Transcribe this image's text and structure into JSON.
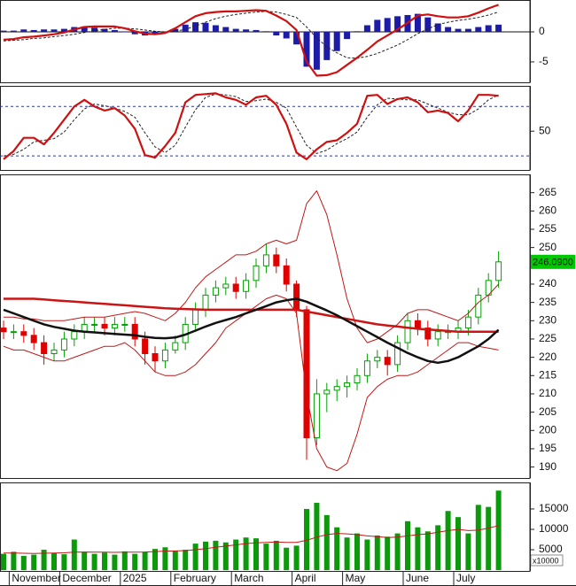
{
  "chart_data": [
    {
      "type": "line",
      "ylim": [
        -8.4,
        5.3
      ],
      "yticks": [
        0,
        -5
      ],
      "zero_line": true,
      "series": [
        {
          "style": "bar",
          "color": "#1c1ca8",
          "values": [
            0.2,
            0.2,
            0.4,
            0.3,
            0.4,
            0.4,
            0.5,
            0.8,
            0.9,
            0.7,
            0.5,
            0.3,
            0,
            -0.4,
            -0.6,
            -0.5,
            -0.2,
            0.5,
            1.2,
            1.6,
            1.5,
            1.1,
            0.8,
            0.5,
            0.4,
            0.3,
            0.1,
            -0.6,
            -1.1,
            -2.1,
            -5.8,
            -6.3,
            -4.7,
            -3.2,
            -1.2,
            0.1,
            1.1,
            2,
            2.3,
            2.6,
            2.8,
            3,
            2.4,
            1.4,
            0.8,
            0.5,
            0.5,
            0.8,
            1.1,
            1.2
          ]
        },
        {
          "style": "dashed",
          "color": "#222222",
          "values": [
            -1.5,
            -1.4,
            -1.3,
            -1.1,
            -1,
            -0.8,
            -0.6,
            -0.4,
            -0.1,
            0.2,
            0.4,
            0.6,
            0.6,
            0.5,
            0.3,
            0.1,
            0,
            0.1,
            0.4,
            1,
            1.6,
            2.2,
            2.6,
            2.9,
            3.1,
            3.3,
            3.4,
            3.3,
            2.9,
            2.4,
            0.8,
            -1,
            -2.5,
            -3.5,
            -4.3,
            -4.4,
            -4.1,
            -3.6,
            -2.9,
            -2.2,
            -1.3,
            -0.3,
            0.5,
            1.2,
            1.6,
            1.9,
            2.1,
            2.4,
            2.8,
            3.3
          ]
        },
        {
          "style": "solid",
          "color": "#d01010",
          "values": [
            -1.3,
            -1.2,
            -0.9,
            -0.8,
            -0.6,
            -0.4,
            -0.1,
            0.4,
            0.8,
            0.9,
            0.9,
            0.9,
            0.6,
            0.1,
            -0.3,
            -0.4,
            -0.2,
            0.6,
            1.6,
            2.6,
            3.1,
            3.3,
            3.4,
            3.4,
            3.5,
            3.6,
            3.5,
            2.7,
            1.8,
            0.3,
            -5,
            -7.3,
            -7.2,
            -6.7,
            -5.5,
            -4.3,
            -3,
            -1.6,
            -0.6,
            0.4,
            1.5,
            2.7,
            2.9,
            2.6,
            2.4,
            2.4,
            2.6,
            3.2,
            3.9,
            4.5
          ]
        }
      ]
    },
    {
      "type": "line",
      "ylim": [
        3,
        105
      ],
      "yticks": [
        50
      ],
      "hlines": [
        80,
        20
      ],
      "series": [
        {
          "style": "dashed",
          "color": "#222222",
          "values": [
            20,
            22,
            28,
            37,
            39,
            41,
            49,
            64,
            77,
            83,
            81,
            78,
            74,
            67,
            48,
            31,
            24,
            33,
            55,
            76,
            91,
            95,
            94,
            92,
            86,
            87,
            89,
            85,
            78,
            55,
            33,
            23,
            27,
            35,
            41,
            49,
            67,
            82,
            90,
            89,
            88,
            88,
            83,
            78,
            73,
            70,
            70,
            77,
            88,
            94
          ]
        },
        {
          "style": "solid",
          "color": "#d01010",
          "values": [
            16,
            26,
            42,
            42,
            34,
            48,
            64,
            80,
            88,
            80,
            75,
            78,
            69,
            53,
            21,
            18,
            32,
            48,
            85,
            94,
            95,
            96,
            91,
            88,
            82,
            91,
            93,
            82,
            59,
            24,
            16,
            28,
            37,
            39,
            48,
            59,
            93,
            94,
            83,
            89,
            91,
            85,
            73,
            75,
            72,
            62,
            75,
            94,
            94,
            93
          ]
        }
      ]
    },
    {
      "type": "candlestick",
      "ylim": [
        187,
        270
      ],
      "yticks": [
        190,
        195,
        200,
        205,
        210,
        215,
        220,
        225,
        230,
        235,
        240,
        245,
        250,
        255,
        260,
        265
      ],
      "up_color": "#00a000",
      "down_color": "#e00000",
      "open": [
        228,
        227,
        227,
        226,
        224,
        221,
        222,
        225,
        227,
        229,
        229,
        228,
        229,
        229,
        225,
        221,
        219,
        222,
        224,
        229,
        233,
        237,
        239,
        240,
        238,
        241,
        245,
        248,
        245,
        240,
        233,
        198,
        210,
        211,
        212,
        213,
        215,
        219,
        220,
        218,
        224,
        230,
        228,
        225,
        227,
        227,
        228,
        231,
        237,
        241
      ],
      "high": [
        230,
        229,
        229,
        228,
        226,
        224,
        227,
        229,
        231,
        231,
        231,
        231,
        231,
        231,
        227,
        223,
        224,
        226,
        231,
        235,
        239,
        241,
        242,
        242,
        243,
        247,
        251,
        250,
        247,
        241,
        234,
        214,
        213,
        214,
        215,
        217,
        221,
        222,
        222,
        226,
        232,
        232,
        230,
        229,
        229,
        230,
        233,
        239,
        243,
        249
      ],
      "low": [
        225,
        225,
        224,
        222,
        218,
        219,
        220,
        223,
        225,
        227,
        226,
        226,
        227,
        223,
        218,
        216,
        217,
        221,
        222,
        227,
        231,
        235,
        237,
        236,
        236,
        239,
        243,
        243,
        238,
        231,
        192,
        196,
        205,
        208,
        209,
        211,
        213,
        217,
        215,
        216,
        222,
        226,
        223,
        223,
        225,
        225,
        226,
        229,
        235,
        239
      ],
      "close": [
        227,
        227,
        226,
        224,
        221,
        222,
        225,
        227,
        229,
        229,
        228,
        229,
        229,
        225,
        221,
        219,
        222,
        224,
        229,
        233,
        237,
        239,
        240,
        238,
        241,
        245,
        248,
        245,
        240,
        233,
        198,
        210,
        211,
        212,
        213,
        215,
        219,
        220,
        218,
        224,
        230,
        228,
        225,
        227,
        227,
        228,
        231,
        237,
        241,
        246.09
      ],
      "value_labels": [
        null,
        null,
        null,
        null,
        null,
        null,
        null,
        null,
        null,
        null,
        null,
        null,
        null,
        null,
        null,
        null,
        null,
        null,
        null,
        null,
        null,
        null,
        null,
        null,
        null,
        null,
        null,
        null,
        null,
        null,
        null,
        null,
        null,
        null,
        null,
        null,
        null,
        null,
        null,
        null,
        null,
        null,
        null,
        null,
        null,
        null,
        null,
        null,
        null,
        "246.0900"
      ],
      "series": [
        {
          "style": "thin",
          "color": "#c01818",
          "values": [
            231,
            231,
            230.5,
            230.5,
            230,
            230,
            230,
            230.5,
            231,
            231,
            231,
            231.5,
            232,
            232.5,
            232,
            231,
            230,
            232,
            235,
            239,
            242,
            244,
            246,
            248,
            248,
            249,
            251,
            252,
            251,
            252,
            262,
            265.5,
            259,
            248,
            236,
            228,
            224,
            225,
            227,
            229,
            232,
            233,
            233,
            232,
            231,
            230,
            232,
            235,
            237,
            240
          ]
        },
        {
          "style": "thin",
          "color": "#c01818",
          "values": [
            223,
            222,
            222,
            221,
            220,
            219,
            219,
            220,
            221,
            222,
            223,
            223,
            224,
            222,
            219,
            216,
            215,
            215,
            216,
            218,
            221,
            224,
            228,
            230,
            232,
            234,
            236,
            237,
            236,
            232,
            210,
            195,
            190,
            189,
            191,
            199,
            209,
            212,
            214,
            215,
            215,
            216,
            218,
            220,
            222,
            224,
            224,
            223,
            222.5,
            222
          ]
        },
        {
          "style": "thick",
          "color": "#cc1414",
          "values": [
            236,
            236,
            236,
            236,
            235.8,
            235.6,
            235.4,
            235.2,
            235,
            234.8,
            234.6,
            234.4,
            234.2,
            234,
            233.8,
            233.6,
            233.4,
            233.3,
            233.2,
            233.1,
            233,
            233,
            233,
            233,
            233,
            233,
            233,
            233,
            233,
            233,
            232.5,
            232,
            231.5,
            231,
            230.5,
            230,
            229.5,
            229,
            228.7,
            228.4,
            228.1,
            227.8,
            227.6,
            227.4,
            227.2,
            227,
            227,
            227,
            227,
            227
          ]
        },
        {
          "style": "thick",
          "color": "#111111",
          "values": [
            233,
            232,
            231,
            230,
            229,
            228.3,
            227.8,
            227.3,
            227,
            226.8,
            226.6,
            226.4,
            226.2,
            226,
            225.6,
            225.3,
            225.2,
            225.4,
            226.2,
            227.3,
            228.4,
            229.4,
            230.2,
            231,
            232,
            233,
            234,
            235,
            235.6,
            236,
            235.2,
            234,
            232.8,
            231.5,
            230,
            228.5,
            227,
            225.5,
            224,
            222.6,
            221.2,
            220,
            219,
            218.5,
            219,
            220,
            221.5,
            223,
            225,
            227.5
          ]
        }
      ]
    },
    {
      "type": "bar",
      "ylim": [
        -200,
        21500
      ],
      "yticks": [
        5000,
        10000,
        15000
      ],
      "unit_label": "x10000",
      "color": "#0c9a0c",
      "categories": [
        null,
        "November",
        null,
        null,
        null,
        null,
        "December",
        null,
        null,
        null,
        null,
        null,
        "2025",
        null,
        null,
        null,
        null,
        "February",
        null,
        null,
        null,
        null,
        null,
        "March",
        null,
        null,
        null,
        null,
        null,
        "April",
        null,
        null,
        null,
        null,
        "May",
        null,
        null,
        null,
        null,
        null,
        "June",
        null,
        null,
        null,
        null,
        "July",
        null,
        null,
        null,
        null
      ],
      "values": [
        4000,
        4500,
        3500,
        3800,
        5000,
        4200,
        3900,
        7500,
        4500,
        4000,
        4300,
        3800,
        4600,
        4000,
        4500,
        5200,
        5600,
        4800,
        5000,
        6500,
        7000,
        7200,
        6800,
        7500,
        8000,
        7800,
        6500,
        7200,
        5500,
        6000,
        15000,
        16500,
        13500,
        10500,
        8000,
        9000,
        7500,
        8500,
        8200,
        9000,
        12000,
        10500,
        9500,
        11000,
        14500,
        13000,
        9000,
        16000,
        15500,
        19500
      ],
      "series": [
        {
          "style": "thin",
          "color": "#c01818",
          "values": [
            4200,
            4200,
            4150,
            4100,
            4150,
            4200,
            4250,
            4400,
            4450,
            4400,
            4400,
            4350,
            4400,
            4400,
            4450,
            4550,
            4650,
            4700,
            4800,
            5000,
            5300,
            5600,
            5900,
            6200,
            6500,
            6700,
            6800,
            6900,
            6800,
            6800,
            7300,
            8100,
            8700,
            9000,
            8900,
            8700,
            8400,
            8200,
            8000,
            8100,
            8400,
            8700,
            8900,
            9300,
            9700,
            10000,
            9700,
            9800,
            10300,
            10900
          ]
        }
      ]
    }
  ]
}
